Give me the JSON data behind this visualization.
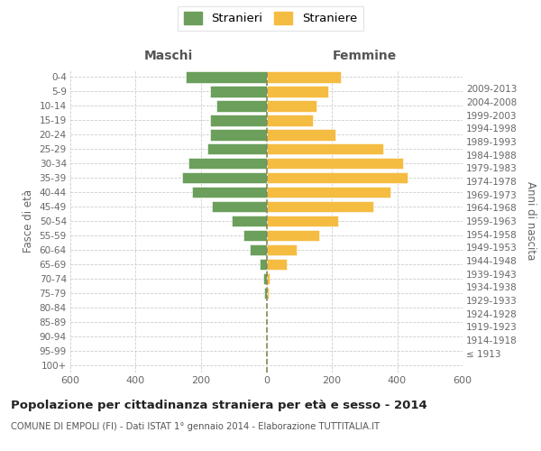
{
  "age_groups": [
    "100+",
    "95-99",
    "90-94",
    "85-89",
    "80-84",
    "75-79",
    "70-74",
    "65-69",
    "60-64",
    "55-59",
    "50-54",
    "45-49",
    "40-44",
    "35-39",
    "30-34",
    "25-29",
    "20-24",
    "15-19",
    "10-14",
    "5-9",
    "0-4"
  ],
  "birth_years": [
    "≤ 1913",
    "1914-1918",
    "1919-1923",
    "1924-1928",
    "1929-1933",
    "1934-1938",
    "1939-1943",
    "1944-1948",
    "1949-1953",
    "1954-1958",
    "1959-1963",
    "1964-1968",
    "1969-1973",
    "1974-1978",
    "1979-1983",
    "1984-1988",
    "1989-1993",
    "1994-1998",
    "1999-2003",
    "2004-2008",
    "2009-2013"
  ],
  "maschi": [
    0,
    0,
    0,
    0,
    0,
    8,
    10,
    22,
    52,
    70,
    105,
    168,
    228,
    258,
    238,
    182,
    172,
    172,
    152,
    172,
    248
  ],
  "femmine": [
    0,
    0,
    0,
    0,
    0,
    8,
    10,
    62,
    92,
    162,
    218,
    328,
    378,
    432,
    418,
    358,
    212,
    142,
    152,
    188,
    228
  ],
  "maschi_color": "#6b9f5b",
  "femmine_color": "#f5bc42",
  "background_color": "#ffffff",
  "grid_color": "#cccccc",
  "title": "Popolazione per cittadinanza straniera per età e sesso - 2014",
  "subtitle": "COMUNE DI EMPOLI (FI) - Dati ISTAT 1° gennaio 2014 - Elaborazione TUTTITALIA.IT",
  "header_left": "Maschi",
  "header_right": "Femmine",
  "ylabel_left": "Fasce di età",
  "ylabel_right": "Anni di nascita",
  "legend_stranieri": "Stranieri",
  "legend_straniere": "Straniere",
  "xlim": 600,
  "bar_height": 0.78
}
